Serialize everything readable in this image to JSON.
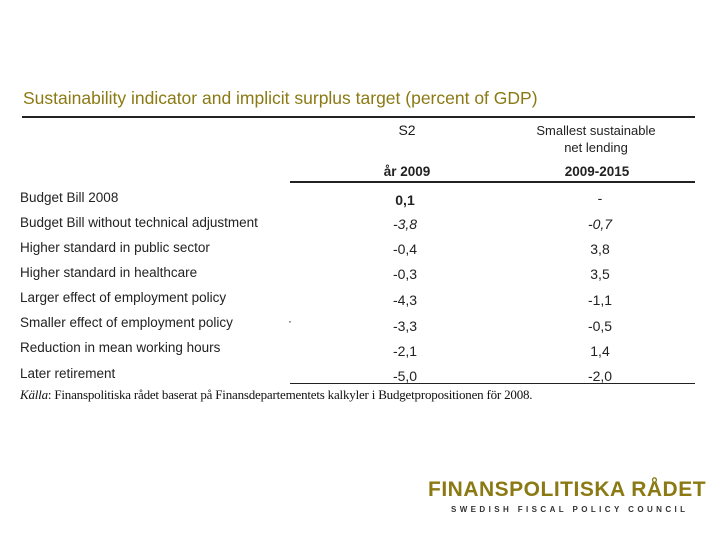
{
  "title": "Sustainability indicator and implicit surplus target (percent of GDP)",
  "columns": {
    "s2": "S2",
    "smallest_line1": "Smallest sustainable",
    "smallest_line2": "net lending",
    "sub_s2": "år 2009",
    "sub_smallest": "2009-2015"
  },
  "rows": [
    {
      "label": "Budget Bill 2008",
      "s2": "0,1",
      "smallest": "-"
    },
    {
      "label": "Budget Bill without technical adjustment",
      "s2": "-3,8",
      "smallest": "-0,7"
    },
    {
      "label": "Higher standard in public sector",
      "s2": "-0,4",
      "smallest": "3,8"
    },
    {
      "label": "Higher standard in healthcare",
      "s2": "-0,3",
      "smallest": "3,5"
    },
    {
      "label": "Larger effect of employment policy",
      "s2": "-4,3",
      "smallest": "-1,1"
    },
    {
      "label": "Smaller effect of employment policy",
      "s2": "-3,3",
      "smallest": "-0,5"
    },
    {
      "label": "Reduction in mean working hours",
      "s2": "-2,1",
      "smallest": "1,4"
    },
    {
      "label": "Later retirement",
      "s2": "-5,0",
      "smallest": "-2,0"
    }
  ],
  "source": {
    "prefix": "Källa",
    "text": ": Finanspolitiska rådet baserat på Finansdepartementets kalkyler i Budgetpropositionen för 2008."
  },
  "stray_mark": "·",
  "logo": {
    "main": "FINANSPOLITISKA RÅDET",
    "sub": "SWEDISH FISCAL POLICY COUNCIL"
  },
  "colors": {
    "accent": "#8b7a14"
  }
}
